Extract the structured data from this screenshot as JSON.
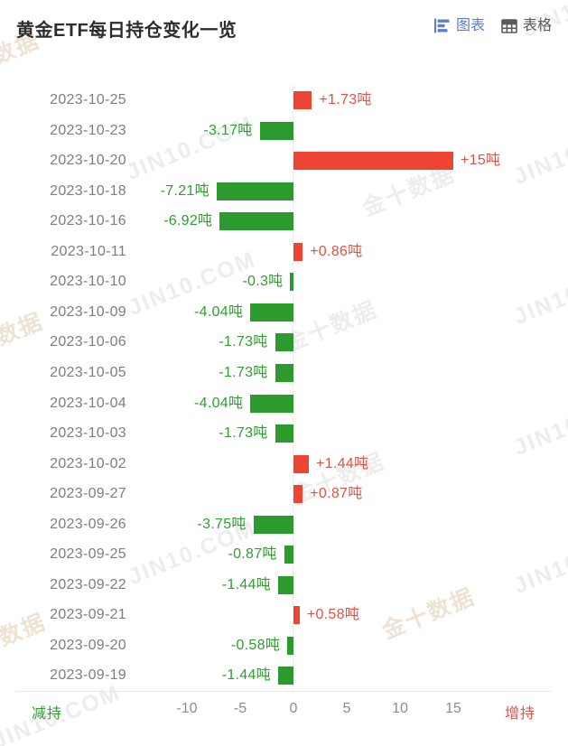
{
  "header": {
    "title": "黄金ETF每日持仓变化一览",
    "chart_toggle_label": "图表",
    "table_toggle_label": "表格"
  },
  "colors": {
    "accent_blue": "#5b7fc7",
    "toggle_inactive": "#595959",
    "bar_increase": "#ee4433",
    "bar_decrease": "#2d9a2d",
    "text_increase": "#e25244",
    "text_decrease": "#2f9e2f",
    "date_text": "#7e7e7e",
    "tick_text": "#8c8c8c"
  },
  "watermark": {
    "cn": "金十数据",
    "en": "JIN10.COM"
  },
  "chart_data": {
    "type": "bar",
    "orientation": "horizontal",
    "title": "黄金ETF每日持仓变化一览",
    "unit": "吨",
    "categories": [
      "2023-10-25",
      "2023-10-23",
      "2023-10-20",
      "2023-10-18",
      "2023-10-16",
      "2023-10-11",
      "2023-10-10",
      "2023-10-09",
      "2023-10-06",
      "2023-10-05",
      "2023-10-04",
      "2023-10-03",
      "2023-10-02",
      "2023-09-27",
      "2023-09-26",
      "2023-09-25",
      "2023-09-22",
      "2023-09-21",
      "2023-09-20",
      "2023-09-19"
    ],
    "values": [
      1.73,
      -3.17,
      15,
      -7.21,
      -6.92,
      0.86,
      -0.3,
      -4.04,
      -1.73,
      -1.73,
      -4.04,
      -1.73,
      1.44,
      0.87,
      -3.75,
      -0.87,
      -1.44,
      0.58,
      -0.58,
      -1.44
    ],
    "labels": [
      "+1.73吨",
      "-3.17吨",
      "+15吨",
      "-7.21吨",
      "-6.92吨",
      "+0.86吨",
      "-0.3吨",
      "-4.04吨",
      "-1.73吨",
      "-1.73吨",
      "-4.04吨",
      "-1.73吨",
      "+1.44吨",
      "+0.87吨",
      "-3.75吨",
      "-0.87吨",
      "-1.44吨",
      "+0.58吨",
      "-0.58吨",
      "-1.44吨"
    ],
    "x_ticks": [
      -10,
      -5,
      0,
      5,
      10,
      15
    ],
    "xlim": [
      -15,
      26
    ],
    "grid": false,
    "decrease_label": "减持",
    "increase_label": "增持"
  }
}
